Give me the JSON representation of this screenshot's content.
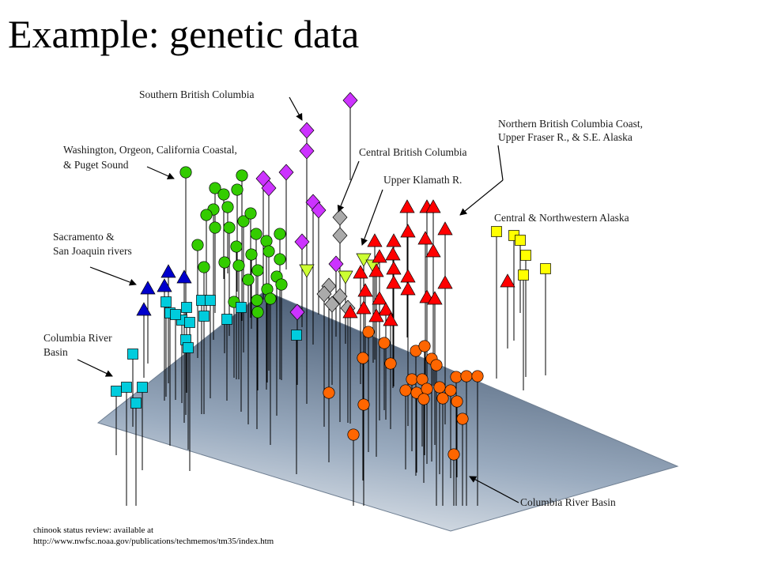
{
  "slide": {
    "title": "Example:  genetic data"
  },
  "citation": {
    "line1": "chinook status review:   available at",
    "line2": "http://www.nwfsc.noaa.gov/publications/techmemos/tm35/index.htm"
  },
  "chart_data": {
    "type": "scatter",
    "projection": "3d",
    "title": "",
    "xlabel": "",
    "ylabel": "",
    "zlabel": "",
    "plane_colors": [
      "#eef1f4",
      "#8a9bb0",
      "#475a72"
    ],
    "series": [
      {
        "name": "Southern British Columbia",
        "marker": "diamond",
        "color": "#cc33ff",
        "points": [
          [
            443,
            127,
            0
          ],
          [
            388,
            165,
            0
          ],
          [
            388,
            191,
            0
          ],
          [
            362,
            218,
            0
          ],
          [
            333,
            226,
            0
          ],
          [
            340,
            238,
            0
          ],
          [
            396,
            256,
            0
          ],
          [
            403,
            266,
            0
          ],
          [
            382,
            306,
            0
          ],
          [
            425,
            334,
            0
          ],
          [
            376,
            395,
            0
          ]
        ]
      },
      {
        "name": "Washington, Orgeon, California Coastal,\n& Puget Sound",
        "marker": "circle",
        "color": "#33cc00",
        "points": [
          [
            235,
            218,
            0
          ],
          [
            272,
            238,
            0
          ],
          [
            283,
            246,
            0
          ],
          [
            300,
            240,
            0
          ],
          [
            306,
            222,
            0
          ],
          [
            270,
            265,
            0
          ],
          [
            288,
            262,
            0
          ],
          [
            261,
            272,
            0
          ],
          [
            272,
            288,
            0
          ],
          [
            290,
            288,
            0
          ],
          [
            308,
            280,
            0
          ],
          [
            317,
            270,
            0
          ],
          [
            324,
            296,
            0
          ],
          [
            337,
            305,
            0
          ],
          [
            354,
            296,
            0
          ],
          [
            299,
            312,
            0
          ],
          [
            318,
            322,
            0
          ],
          [
            340,
            318,
            0
          ],
          [
            354,
            328,
            0
          ],
          [
            284,
            332,
            0
          ],
          [
            302,
            336,
            0
          ],
          [
            326,
            342,
            0
          ],
          [
            350,
            350,
            0
          ],
          [
            356,
            360,
            0
          ],
          [
            338,
            366,
            0
          ],
          [
            314,
            354,
            0
          ],
          [
            325,
            380,
            0
          ],
          [
            342,
            378,
            0
          ],
          [
            296,
            382,
            0
          ],
          [
            326,
            395,
            0
          ],
          [
            258,
            338,
            0
          ],
          [
            250,
            310,
            0
          ]
        ]
      },
      {
        "name": "Central British Columbia",
        "marker": "diamond",
        "color": "#aaaaaa",
        "points": [
          [
            430,
            275,
            0
          ],
          [
            430,
            298,
            0
          ],
          [
            416,
            362,
            0
          ],
          [
            430,
            375,
            0
          ],
          [
            420,
            385,
            0
          ],
          [
            440,
            390,
            0
          ],
          [
            410,
            372,
            0
          ]
        ]
      },
      {
        "name": "Upper Klamath R.",
        "marker": "triangle-down",
        "color": "#ccff33",
        "points": [
          [
            460,
            328,
            0
          ],
          [
            388,
            342,
            0
          ],
          [
            437,
            350,
            0
          ],
          [
            472,
            336,
            0
          ]
        ]
      },
      {
        "name": "Northern British Columbia Coast,\nUpper Fraser R., & S.E. Alaska",
        "marker": "triangle",
        "color": "#ff0000",
        "points": [
          [
            515,
            262,
            0
          ],
          [
            540,
            262,
            0
          ],
          [
            548,
            262,
            0
          ],
          [
            516,
            293,
            0
          ],
          [
            474,
            305,
            0
          ],
          [
            498,
            305,
            0
          ],
          [
            538,
            302,
            0
          ],
          [
            563,
            290,
            0
          ],
          [
            548,
            318,
            0
          ],
          [
            480,
            325,
            0
          ],
          [
            497,
            322,
            0
          ],
          [
            476,
            343,
            0
          ],
          [
            498,
            340,
            0
          ],
          [
            456,
            345,
            0
          ],
          [
            462,
            368,
            0
          ],
          [
            498,
            358,
            0
          ],
          [
            516,
            350,
            0
          ],
          [
            516,
            366,
            0
          ],
          [
            480,
            378,
            0
          ],
          [
            460,
            390,
            0
          ],
          [
            443,
            395,
            0
          ],
          [
            488,
            392,
            0
          ],
          [
            476,
            400,
            0
          ],
          [
            494,
            405,
            0
          ],
          [
            540,
            376,
            0
          ],
          [
            550,
            378,
            0
          ],
          [
            563,
            358,
            0
          ],
          [
            642,
            356,
            0
          ]
        ]
      },
      {
        "name": "Central & Northwestern Alaska",
        "marker": "square",
        "color": "#ffff00",
        "points": [
          [
            628,
            293,
            0
          ],
          [
            650,
            298,
            0
          ],
          [
            658,
            304,
            0
          ],
          [
            665,
            323,
            0
          ],
          [
            662,
            348,
            0
          ],
          [
            690,
            340,
            0
          ]
        ]
      },
      {
        "name": "Sacramento &\nSan Joaquin rivers",
        "marker": "triangle",
        "color": "#0000cc",
        "points": [
          [
            213,
            344,
            0
          ],
          [
            233,
            351,
            0
          ],
          [
            187,
            365,
            0
          ],
          [
            208,
            362,
            0
          ],
          [
            182,
            392,
            0
          ]
        ]
      },
      {
        "name": "Columbia River\nBasin",
        "marker": "square",
        "color": "#00ccdd",
        "points": [
          [
            210,
            382,
            0
          ],
          [
            215,
            396,
            0
          ],
          [
            236,
            389,
            0
          ],
          [
            255,
            380,
            0
          ],
          [
            266,
            380,
            0
          ],
          [
            230,
            405,
            0
          ],
          [
            240,
            408,
            0
          ],
          [
            258,
            400,
            0
          ],
          [
            287,
            404,
            0
          ],
          [
            305,
            389,
            0
          ],
          [
            235,
            430,
            0
          ],
          [
            238,
            440,
            0
          ],
          [
            168,
            448,
            0
          ],
          [
            160,
            490,
            0
          ],
          [
            147,
            495,
            0
          ],
          [
            180,
            490,
            0
          ],
          [
            172,
            510,
            0
          ],
          [
            375,
            424,
            0
          ],
          [
            222,
            398,
            0
          ]
        ]
      },
      {
        "name": "Columbia River Basin",
        "marker": "circle",
        "color": "#ff6600",
        "points": [
          [
            466,
            420,
            0
          ],
          [
            486,
            434,
            0
          ],
          [
            526,
            444,
            0
          ],
          [
            537,
            438,
            0
          ],
          [
            459,
            453,
            0
          ],
          [
            494,
            460,
            0
          ],
          [
            546,
            454,
            0
          ],
          [
            552,
            462,
            0
          ],
          [
            521,
            480,
            0
          ],
          [
            534,
            480,
            0
          ],
          [
            577,
            477,
            0
          ],
          [
            590,
            476,
            0
          ],
          [
            604,
            476,
            0
          ],
          [
            513,
            494,
            0
          ],
          [
            527,
            497,
            0
          ],
          [
            540,
            492,
            0
          ],
          [
            556,
            490,
            0
          ],
          [
            570,
            494,
            0
          ],
          [
            536,
            505,
            0
          ],
          [
            560,
            504,
            0
          ],
          [
            578,
            508,
            0
          ],
          [
            585,
            530,
            0
          ],
          [
            416,
            497,
            0
          ],
          [
            460,
            512,
            0
          ],
          [
            447,
            550,
            0
          ],
          [
            574,
            575,
            0
          ]
        ]
      }
    ]
  },
  "annotations": [
    {
      "id": "southern-bc",
      "text": [
        "Southern British Columbia"
      ],
      "series": 0
    },
    {
      "id": "central-bc",
      "text": [
        "Central British Columbia"
      ],
      "series": 2
    },
    {
      "id": "northern-bc",
      "text": [
        "Northern British Columbia Coast,",
        "Upper Fraser R., & S.E. Alaska"
      ],
      "series": 4
    },
    {
      "id": "washington",
      "text": [
        "Washington, Orgeon, California Coastal,",
        "& Puget Sound"
      ],
      "series": 1
    },
    {
      "id": "upper-klamath",
      "text": [
        "Upper Klamath R."
      ],
      "series": 3
    },
    {
      "id": "central-nw-alaska",
      "text": [
        "Central & Northwestern Alaska"
      ],
      "series": 5
    },
    {
      "id": "sacramento",
      "text": [
        "Sacramento &",
        "San Joaquin rivers"
      ],
      "series": 6
    },
    {
      "id": "columbia-cyan",
      "text": [
        "Columbia River",
        "Basin"
      ],
      "series": 7
    },
    {
      "id": "columbia-orange",
      "text": [
        "Columbia River Basin"
      ],
      "series": 8
    }
  ]
}
